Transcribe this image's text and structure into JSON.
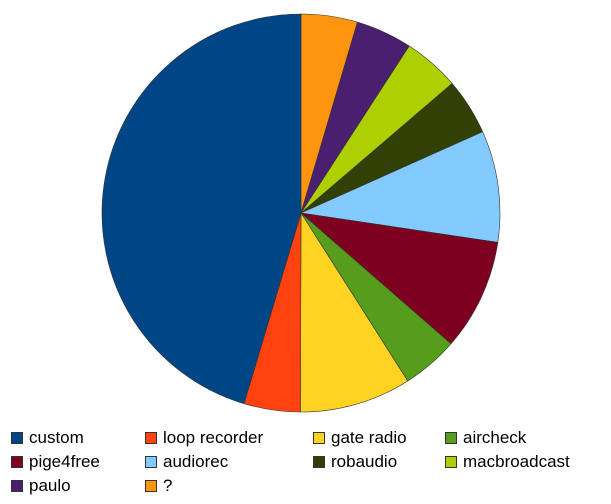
{
  "chart_data": {
    "type": "pie",
    "title": "",
    "slices": [
      {
        "label": "custom",
        "value": 47.6,
        "color": "#004586"
      },
      {
        "label": "loop recorder",
        "value": 4.8,
        "color": "#ff420e"
      },
      {
        "label": "gate radio",
        "value": 9.5,
        "color": "#ffd320"
      },
      {
        "label": "aircheck",
        "value": 4.8,
        "color": "#579d1c"
      },
      {
        "label": "pige4free",
        "value": 9.5,
        "color": "#7e0021"
      },
      {
        "label": "audiorec",
        "value": 9.5,
        "color": "#83caff"
      },
      {
        "label": "robaudio",
        "value": 4.8,
        "color": "#314004"
      },
      {
        "label": "macbroadcast",
        "value": 4.8,
        "color": "#aecf00"
      },
      {
        "label": "paulo",
        "value": 4.8,
        "color": "#4b1f6f"
      },
      {
        "label": "?",
        "value": 4.8,
        "color": "#ff950e"
      }
    ],
    "legend_position": "bottom"
  }
}
